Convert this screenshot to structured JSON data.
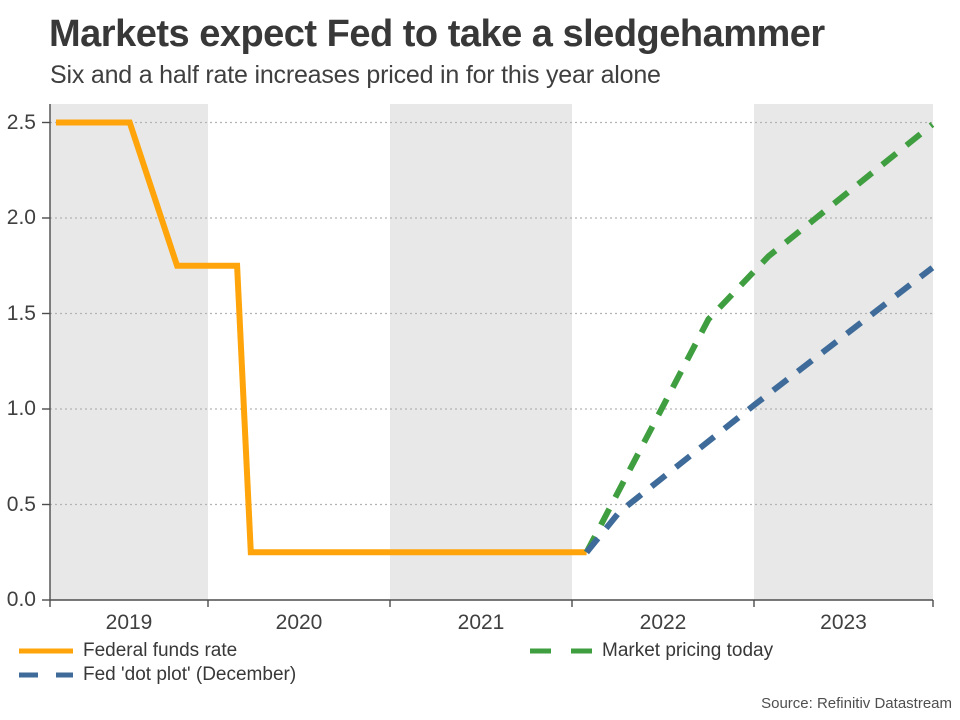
{
  "header": {
    "title": "Markets expect Fed to take a sledgehammer",
    "subtitle": "Six and a half rate increases priced in for this year alone"
  },
  "source_note": "Source: Refinitiv Datastream",
  "colors": {
    "federal_funds_orange": "#ffa40a",
    "market_pricing_green": "#3f9e3f",
    "dot_plot_blue": "#3e6b99",
    "year_band_gray": "#e8e8e8",
    "gridline_gray": "#b3b3b3",
    "axis_gray": "#4d4d4d",
    "text_dark": "#383838"
  },
  "legend": {
    "items": [
      {
        "label": "Federal funds rate",
        "color": "#ffa40a",
        "style": "solid"
      },
      {
        "label": "Fed 'dot plot' (December)",
        "color": "#3e6b99",
        "style": "dashed"
      },
      {
        "label": "Market pricing today",
        "color": "#3f9e3f",
        "style": "dashed"
      }
    ]
  },
  "chart_data": {
    "type": "line",
    "title": "Markets expect Fed to take a sledgehammer",
    "subtitle": "Six and a half rate increases priced in for this year alone",
    "xlabel": "",
    "ylabel": "",
    "x_axis": {
      "tick_label_years": [
        2019,
        2020,
        2021,
        2022,
        2023
      ],
      "visible_range_years": [
        2019.13,
        2023.985
      ],
      "shaded_years": [
        2019,
        2021,
        2023
      ]
    },
    "y_axis": {
      "ticks": [
        0.0,
        0.5,
        1.0,
        1.5,
        2.0,
        2.5
      ],
      "range": [
        0.0,
        2.6
      ],
      "gridlines": "dotted"
    },
    "legend_position": "bottom",
    "series": [
      {
        "name": "Federal funds rate",
        "color": "#ffa40a",
        "style": "solid",
        "points": [
          [
            2019.165,
            2.5
          ],
          [
            2019.57,
            2.5
          ],
          [
            2019.83,
            1.75
          ],
          [
            2020.16,
            1.75
          ],
          [
            2020.235,
            0.25
          ],
          [
            2022.08,
            0.25
          ]
        ]
      },
      {
        "name": "Market pricing today",
        "color": "#3f9e3f",
        "style": "dashed",
        "points": [
          [
            2022.08,
            0.25
          ],
          [
            2022.75,
            1.47
          ],
          [
            2023.08,
            1.8
          ],
          [
            2023.98,
            2.49
          ]
        ]
      },
      {
        "name": "Fed 'dot plot' (December)",
        "color": "#3e6b99",
        "style": "dashed",
        "points": [
          [
            2022.08,
            0.25
          ],
          [
            2022.26,
            0.46
          ],
          [
            2023.0,
            1.02
          ],
          [
            2023.98,
            1.74
          ]
        ]
      }
    ]
  }
}
